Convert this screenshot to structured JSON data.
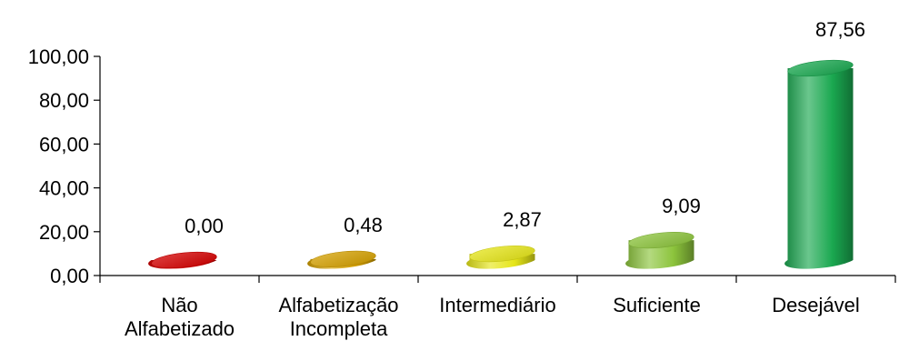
{
  "chart_data": {
    "type": "bar",
    "style": "3d-cylinder",
    "categories": [
      [
        "Não",
        "Alfabetizado"
      ],
      [
        "Alfabetização",
        "Incompleta"
      ],
      [
        "Intermediário"
      ],
      [
        "Suficiente"
      ],
      [
        "Desejável"
      ]
    ],
    "values": [
      0.0,
      0.48,
      2.87,
      9.09,
      87.56
    ],
    "data_labels": [
      "0,00",
      "0,48",
      "2,87",
      "9,09",
      "87,56"
    ],
    "ylim": [
      0,
      100
    ],
    "yticks": [
      0,
      20,
      40,
      60,
      80,
      100
    ],
    "ytick_labels": [
      "0,00",
      "20,00",
      "40,00",
      "60,00",
      "80,00",
      "100,00"
    ],
    "grid": false,
    "legend": "none",
    "colors": [
      "#d40000",
      "#d4a000",
      "#e6e619",
      "#8cc43c",
      "#1aa850"
    ]
  }
}
